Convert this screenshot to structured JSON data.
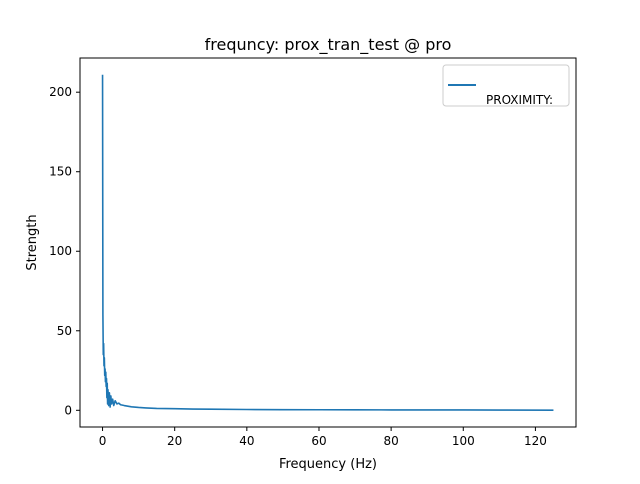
{
  "chart_data": {
    "type": "line",
    "title": "frequncy: prox_tran_test @ pro",
    "xlabel": "Frequency (Hz)",
    "ylabel": "Strength",
    "xlim": [
      -6.25,
      131.25
    ],
    "ylim": [
      -10.5,
      221.5
    ],
    "xticks": [
      0,
      20,
      40,
      60,
      80,
      100,
      120
    ],
    "yticks": [
      0,
      50,
      100,
      150,
      200
    ],
    "grid": false,
    "legend_position": "top-right",
    "series": [
      {
        "name": "PROXIMITY:",
        "color": "#1f77b4",
        "x": [
          0,
          0.1,
          0.2,
          0.3,
          0.4,
          0.5,
          0.6,
          0.7,
          0.8,
          0.9,
          1.0,
          1.1,
          1.2,
          1.3,
          1.4,
          1.5,
          1.7,
          1.9,
          2.1,
          2.3,
          2.5,
          2.8,
          3.1,
          3.5,
          4,
          4.5,
          5,
          6,
          7,
          8,
          10,
          12,
          15,
          20,
          25,
          30,
          40,
          50,
          60,
          70,
          80,
          90,
          100,
          110,
          125
        ],
        "values": [
          211,
          60,
          35,
          42,
          28,
          33,
          22,
          26,
          18,
          24,
          15,
          20,
          8,
          17,
          4,
          13,
          3,
          11,
          2,
          9,
          4,
          7,
          3,
          6,
          4,
          4.5,
          3.5,
          3,
          2.6,
          2.2,
          1.8,
          1.5,
          1.2,
          1.0,
          0.8,
          0.7,
          0.5,
          0.4,
          0.35,
          0.3,
          0.25,
          0.2,
          0.2,
          0.15,
          0.1
        ]
      }
    ]
  }
}
